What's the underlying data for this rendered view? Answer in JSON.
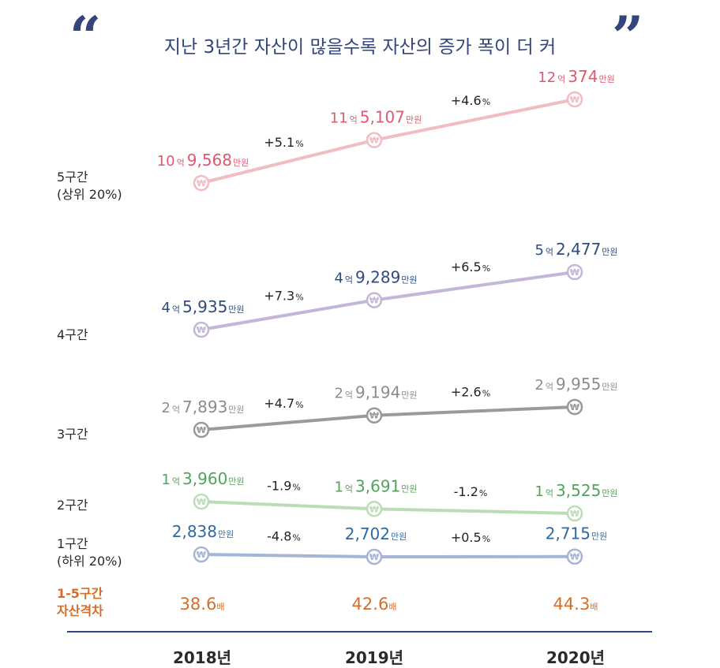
{
  "title": "지난 3년간 자산이 많을수록 자산의 증가 폭이 더 커",
  "quote_open": "“",
  "quote_close": "”",
  "years": [
    "2018년",
    "2019년",
    "2020년"
  ],
  "gap": {
    "label_line1": "1-5구간",
    "label_line2": "자산격차",
    "values": [
      "38.6",
      "42.6",
      "44.3"
    ],
    "unit": "배"
  },
  "chart_data": {
    "type": "line",
    "title": "지난 3년간 자산이 많을수록 자산의 증가 폭이 더 커",
    "x": [
      "2018년",
      "2019년",
      "2020년"
    ],
    "unit": "만원",
    "series": [
      {
        "name": "5구간 (상위 20%)",
        "label_line1": "5구간",
        "label_line2": "(상위 20%)",
        "values": [
          109568,
          115107,
          120374
        ],
        "display": [
          {
            "eok": "10",
            "man": "9,568"
          },
          {
            "eok": "11",
            "man": "5,107"
          },
          {
            "eok": "12",
            "man": "374"
          }
        ],
        "changes": [
          "+5.1",
          "+4.6"
        ],
        "line_color": "#f1bcc4",
        "text_color": "#e0586f"
      },
      {
        "name": "4구간",
        "label_line1": "4구간",
        "label_line2": "",
        "values": [
          45935,
          49289,
          52477
        ],
        "display": [
          {
            "eok": "4",
            "man": "5,935"
          },
          {
            "eok": "4",
            "man": "9,289"
          },
          {
            "eok": "5",
            "man": "2,477"
          }
        ],
        "changes": [
          "+7.3",
          "+6.5"
        ],
        "line_color": "#c3b6d8",
        "text_color": "#2f4c7c"
      },
      {
        "name": "3구간",
        "label_line1": "3구간",
        "label_line2": "",
        "values": [
          27893,
          29194,
          29955
        ],
        "display": [
          {
            "eok": "2",
            "man": "7,893"
          },
          {
            "eok": "2",
            "man": "9,194"
          },
          {
            "eok": "2",
            "man": "9,955"
          }
        ],
        "changes": [
          "+4.7",
          "+2.6"
        ],
        "line_color": "#9a9a9a",
        "text_color": "#8c8c8c"
      },
      {
        "name": "2구간",
        "label_line1": "2구간",
        "label_line2": "",
        "values": [
          13960,
          13691,
          13525
        ],
        "display": [
          {
            "eok": "1",
            "man": "3,960"
          },
          {
            "eok": "1",
            "man": "3,691"
          },
          {
            "eok": "1",
            "man": "3,525"
          }
        ],
        "changes": [
          "-1.9",
          "-1.2"
        ],
        "line_color": "#bcdcb8",
        "text_color": "#52a25c"
      },
      {
        "name": "1구간 (하위 20%)",
        "label_line1": "1구간",
        "label_line2": "(하위 20%)",
        "values": [
          2838,
          2702,
          2715
        ],
        "display": [
          {
            "eok": "",
            "man": "2,838"
          },
          {
            "eok": "",
            "man": "2,702"
          },
          {
            "eok": "",
            "man": "2,715"
          }
        ],
        "changes": [
          "-4.8",
          "+0.5"
        ],
        "line_color": "#a6b4d5",
        "text_color": "#2f69a1"
      }
    ],
    "value_unit_eok": "억",
    "value_unit_man": "만원",
    "change_unit": "%"
  }
}
